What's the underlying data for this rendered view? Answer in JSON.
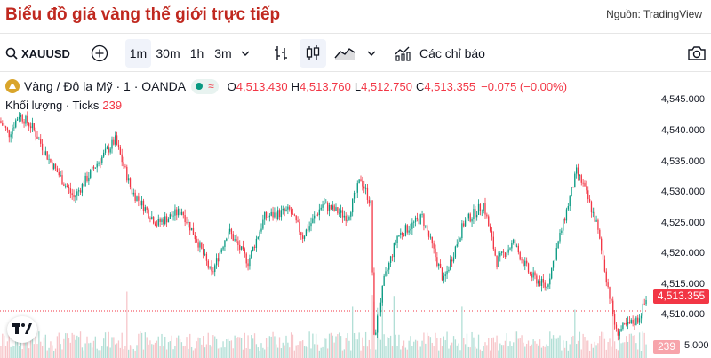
{
  "header": {
    "title": "Biểu đồ giá vàng thế giới trực tiếp",
    "source": "Nguồn: TradingView"
  },
  "toolbar": {
    "symbol": "XAUUSD",
    "intervals": [
      "1m",
      "30m",
      "1h",
      "3m"
    ],
    "active_interval": "1m",
    "indicators_label": "Các chỉ báo",
    "icons": [
      "search-icon",
      "add-compare-icon",
      "chevron-down-icon",
      "bars-icon",
      "candles-icon",
      "area-icon",
      "chevron-down-icon",
      "indicators-icon",
      "camera-icon"
    ]
  },
  "legend": {
    "name": "Vàng / Đô la Mỹ · 1 · OANDA",
    "wave": "≈",
    "o_label": "O",
    "o": "4,513.430",
    "h_label": "H",
    "h": "4,513.760",
    "l_label": "L",
    "l": "4,512.750",
    "c_label": "C",
    "c": "4,513.355",
    "change": "−0.075 (−0.00%)"
  },
  "volume_legend": {
    "label": "Khối lượng · Ticks",
    "value": "239"
  },
  "price_axis": {
    "ticks": [
      "4,545.000",
      "4,540.000",
      "4,535.000",
      "4,530.000",
      "4,525.000",
      "4,520.000",
      "4,515.000",
      "4,510.000",
      "5.000"
    ],
    "current_price": "4,513.355",
    "current_volume": "239"
  },
  "colors": {
    "up": "#089981",
    "down": "#f23645",
    "title": "#c0281f",
    "up_vol": "#b2dfd6",
    "down_vol": "#f7c6ca"
  },
  "chart_data": {
    "type": "candlestick",
    "ylim": [
      4506,
      4548
    ],
    "keypoints": [
      [
        0,
        4543
      ],
      [
        6,
        4541
      ],
      [
        12,
        4544
      ],
      [
        20,
        4542
      ],
      [
        30,
        4537
      ],
      [
        45,
        4531
      ],
      [
        58,
        4536
      ],
      [
        70,
        4540
      ],
      [
        80,
        4532
      ],
      [
        95,
        4527
      ],
      [
        110,
        4529
      ],
      [
        120,
        4524
      ],
      [
        128,
        4519
      ],
      [
        138,
        4526
      ],
      [
        150,
        4521
      ],
      [
        160,
        4528
      ],
      [
        175,
        4529
      ],
      [
        183,
        4525
      ],
      [
        195,
        4530
      ],
      [
        210,
        4528
      ],
      [
        218,
        4534
      ],
      [
        224,
        4530
      ],
      [
        226,
        4509
      ],
      [
        232,
        4518
      ],
      [
        240,
        4525
      ],
      [
        255,
        4528
      ],
      [
        268,
        4518
      ],
      [
        280,
        4527
      ],
      [
        292,
        4530
      ],
      [
        300,
        4521
      ],
      [
        310,
        4524
      ],
      [
        320,
        4519
      ],
      [
        330,
        4517
      ],
      [
        340,
        4527
      ],
      [
        348,
        4535
      ],
      [
        352,
        4533
      ],
      [
        360,
        4527
      ],
      [
        372,
        4510
      ],
      [
        385,
        4512
      ],
      [
        390,
        4515
      ]
    ],
    "n_candles": 390
  }
}
